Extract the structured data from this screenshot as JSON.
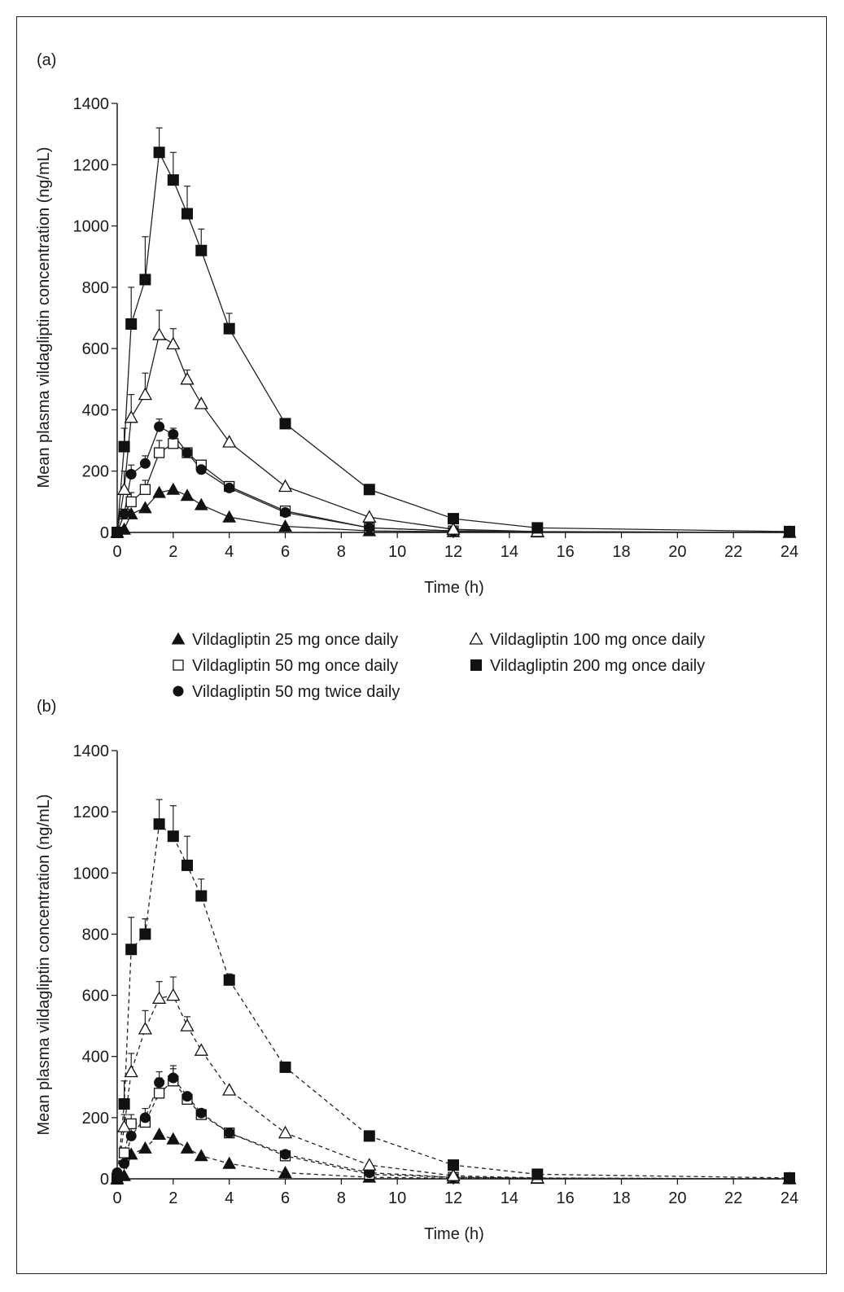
{
  "legend": [
    {
      "marker": "triangle-filled",
      "label": "Vildagliptin 25 mg once daily"
    },
    {
      "marker": "square-open",
      "label": "Vildagliptin 50 mg once daily"
    },
    {
      "marker": "circle-filled",
      "label": "Vildagliptin 50 mg twice daily"
    },
    {
      "marker": "triangle-open",
      "label": "Vildagliptin 100 mg once daily"
    },
    {
      "marker": "square-filled",
      "label": "Vildagliptin 200 mg once daily"
    }
  ],
  "chart_data": [
    {
      "type": "line",
      "panel_label": "(a)",
      "line_style": "solid",
      "xlabel": "Time (h)",
      "ylabel": "Mean plasma vildagliptin concentration (ng/mL)",
      "xlim": [
        0,
        24
      ],
      "ylim": [
        0,
        1400
      ],
      "xticks": [
        0,
        2,
        4,
        6,
        8,
        10,
        12,
        14,
        16,
        18,
        20,
        22,
        24
      ],
      "yticks": [
        0,
        200,
        400,
        600,
        800,
        1000,
        1200,
        1400
      ],
      "grid": false,
      "series": [
        {
          "name": "Vildagliptin 25 mg once daily",
          "marker": "triangle-filled",
          "x": [
            0,
            0.25,
            0.5,
            1,
            1.5,
            2,
            2.5,
            3,
            4,
            6,
            9,
            12,
            15,
            24
          ],
          "y": [
            0,
            10,
            60,
            80,
            130,
            140,
            120,
            90,
            50,
            20,
            5,
            2,
            1,
            0
          ]
        },
        {
          "name": "Vildagliptin 50 mg once daily",
          "marker": "square-open",
          "x": [
            0,
            0.25,
            0.5,
            1,
            1.5,
            2,
            2.5,
            3,
            4,
            6,
            9,
            12,
            15,
            24
          ],
          "y": [
            0,
            60,
            100,
            140,
            260,
            290,
            260,
            220,
            150,
            70,
            15,
            5,
            2,
            0
          ],
          "err_top": [
            null,
            null,
            130,
            170,
            300,
            320,
            null,
            null,
            null,
            null,
            null,
            null,
            null,
            null
          ]
        },
        {
          "name": "Vildagliptin 50 mg twice daily",
          "marker": "circle-filled",
          "x": [
            0,
            0.25,
            0.5,
            1,
            1.5,
            2,
            2.5,
            3,
            4,
            6,
            9,
            12,
            15,
            24
          ],
          "y": [
            0,
            60,
            190,
            225,
            345,
            320,
            260,
            205,
            145,
            65,
            15,
            5,
            2,
            0
          ],
          "err_top": [
            null,
            null,
            220,
            250,
            370,
            340,
            null,
            null,
            null,
            null,
            null,
            null,
            null,
            null
          ]
        },
        {
          "name": "Vildagliptin 100 mg once daily",
          "marker": "triangle-open",
          "x": [
            0,
            0.25,
            0.5,
            1,
            1.5,
            2,
            2.5,
            3,
            4,
            6,
            9,
            12,
            15,
            24
          ],
          "y": [
            0,
            140,
            375,
            450,
            645,
            615,
            500,
            420,
            295,
            150,
            50,
            10,
            3,
            0
          ],
          "err_top": [
            null,
            200,
            450,
            520,
            725,
            665,
            530,
            null,
            null,
            null,
            null,
            null,
            null,
            null
          ]
        },
        {
          "name": "Vildagliptin 200 mg once daily",
          "marker": "square-filled",
          "x": [
            0,
            0.25,
            0.5,
            1,
            1.5,
            2,
            2.5,
            3,
            4,
            6,
            9,
            12,
            15,
            24
          ],
          "y": [
            0,
            280,
            680,
            825,
            1240,
            1150,
            1040,
            920,
            665,
            355,
            140,
            45,
            15,
            3
          ],
          "err_top": [
            null,
            340,
            800,
            965,
            1320,
            1240,
            1130,
            990,
            715,
            null,
            null,
            null,
            null,
            null
          ]
        }
      ]
    },
    {
      "type": "line",
      "panel_label": "(b)",
      "line_style": "dashed",
      "xlabel": "Time (h)",
      "ylabel": "Mean plasma vildagliptin concentration (ng/mL)",
      "xlim": [
        0,
        24
      ],
      "ylim": [
        0,
        1400
      ],
      "xticks": [
        0,
        2,
        4,
        6,
        8,
        10,
        12,
        14,
        16,
        18,
        20,
        22,
        24
      ],
      "yticks": [
        0,
        200,
        400,
        600,
        800,
        1000,
        1200,
        1400
      ],
      "grid": false,
      "series": [
        {
          "name": "Vildagliptin 25 mg once daily",
          "marker": "triangle-filled",
          "x": [
            0,
            0.25,
            0.5,
            1,
            1.5,
            2,
            2.5,
            3,
            4,
            6,
            9,
            12,
            15,
            24
          ],
          "y": [
            0,
            10,
            80,
            100,
            145,
            130,
            100,
            75,
            50,
            20,
            5,
            2,
            1,
            0
          ]
        },
        {
          "name": "Vildagliptin 50 mg once daily",
          "marker": "square-open",
          "x": [
            0,
            0.25,
            0.5,
            1,
            1.5,
            2,
            2.5,
            3,
            4,
            6,
            9,
            12,
            15,
            24
          ],
          "y": [
            0,
            85,
            180,
            185,
            280,
            320,
            260,
            210,
            150,
            75,
            15,
            5,
            2,
            0
          ],
          "err_top": [
            null,
            null,
            210,
            210,
            330,
            360,
            null,
            null,
            null,
            null,
            null,
            null,
            null,
            null
          ]
        },
        {
          "name": "Vildagliptin 50 mg twice daily",
          "marker": "circle-filled",
          "x": [
            0,
            0.25,
            0.5,
            1,
            1.5,
            2,
            2.5,
            3,
            4,
            6,
            9,
            12,
            15,
            24
          ],
          "y": [
            20,
            50,
            140,
            200,
            315,
            330,
            270,
            215,
            150,
            80,
            20,
            5,
            2,
            0
          ],
          "err_top": [
            null,
            null,
            170,
            230,
            350,
            370,
            null,
            null,
            null,
            null,
            null,
            null,
            null,
            null
          ]
        },
        {
          "name": "Vildagliptin 100 mg once daily",
          "marker": "triangle-open",
          "x": [
            0,
            0.25,
            0.5,
            1,
            1.5,
            2,
            2.5,
            3,
            4,
            6,
            9,
            12,
            15,
            24
          ],
          "y": [
            0,
            170,
            350,
            490,
            590,
            600,
            500,
            420,
            290,
            150,
            45,
            10,
            3,
            0
          ],
          "err_top": [
            null,
            210,
            410,
            550,
            645,
            660,
            530,
            null,
            null,
            null,
            null,
            null,
            null,
            null
          ]
        },
        {
          "name": "Vildagliptin 200 mg once daily",
          "marker": "square-filled",
          "x": [
            0,
            0.25,
            0.5,
            1,
            1.5,
            2,
            2.5,
            3,
            4,
            6,
            9,
            12,
            15,
            24
          ],
          "y": [
            0,
            245,
            750,
            800,
            1160,
            1120,
            1025,
            925,
            650,
            365,
            140,
            45,
            15,
            3
          ],
          "err_top": [
            null,
            320,
            855,
            850,
            1240,
            1220,
            1120,
            980,
            670,
            null,
            null,
            null,
            null,
            null
          ]
        }
      ]
    }
  ]
}
